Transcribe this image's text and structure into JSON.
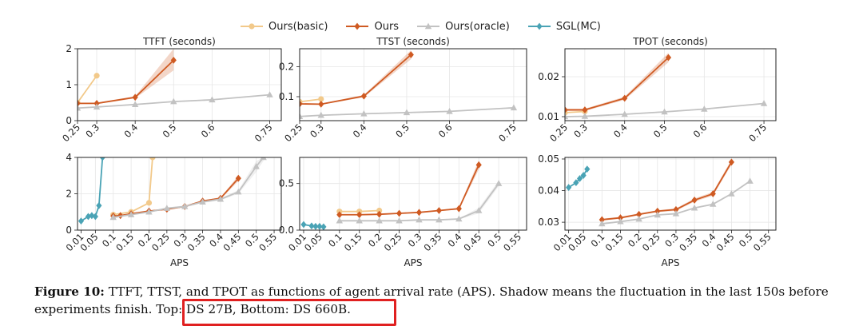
{
  "legend": [
    {
      "name": "Ours(basic)",
      "color": "#f2c98a",
      "marker": "circle"
    },
    {
      "name": "Ours",
      "color": "#cf5a22",
      "marker": "diamond"
    },
    {
      "name": "Ours(oracle)",
      "color": "#c2c2c2",
      "marker": "triangle"
    },
    {
      "name": "SGL(MC)",
      "color": "#4aa3b5",
      "marker": "diamond"
    }
  ],
  "caption": {
    "label": "Figure 10:",
    "text": " TTFT, TTST, and TPOT as functions of agent arrival rate (APS). Shadow means the fluctuation in the last 150s before experiments finish.",
    "highlight": "Top: DS 27B, Bottom: DS 660B."
  },
  "chart_data": [
    {
      "type": "line",
      "title": "TTFT (seconds)",
      "xlabel": "",
      "ylabel": "",
      "xlim": [
        0.25,
        0.78
      ],
      "ylim": [
        0,
        2
      ],
      "xticks": [
        "0.25",
        "0.3",
        "0.4",
        "0.5",
        "0.6",
        "0.75"
      ],
      "yticks": [
        "0",
        "1",
        "2"
      ],
      "series": [
        {
          "name": "Ours(basic)",
          "x": [
            0.25,
            0.3
          ],
          "y": [
            0.5,
            1.25
          ]
        },
        {
          "name": "Ours",
          "x": [
            0.25,
            0.3,
            0.4,
            0.5
          ],
          "y": [
            0.48,
            0.48,
            0.65,
            1.68
          ],
          "band_upper": [
            0.5,
            0.5,
            0.68,
            2.0
          ],
          "band_lower": [
            0.46,
            0.46,
            0.62,
            1.4
          ]
        },
        {
          "name": "Ours(oracle)",
          "x": [
            0.25,
            0.3,
            0.4,
            0.5,
            0.6,
            0.75
          ],
          "y": [
            0.35,
            0.38,
            0.45,
            0.53,
            0.58,
            0.72
          ]
        }
      ]
    },
    {
      "type": "line",
      "title": "TTST (seconds)",
      "xlabel": "",
      "ylabel": "",
      "xlim": [
        0.25,
        0.78
      ],
      "ylim": [
        0.02,
        0.26
      ],
      "xticks": [
        "0.25",
        "0.3",
        "0.4",
        "0.5",
        "0.6",
        "0.75"
      ],
      "yticks": [
        "0.1",
        "0.2"
      ],
      "series": [
        {
          "name": "Ours(basic)",
          "x": [
            0.25,
            0.3
          ],
          "y": [
            0.083,
            0.092
          ]
        },
        {
          "name": "Ours",
          "x": [
            0.25,
            0.3,
            0.4,
            0.51
          ],
          "y": [
            0.076,
            0.075,
            0.102,
            0.24
          ],
          "band_upper": [
            0.078,
            0.077,
            0.106,
            0.255
          ],
          "band_lower": [
            0.074,
            0.073,
            0.098,
            0.225
          ]
        },
        {
          "name": "Ours(oracle)",
          "x": [
            0.25,
            0.3,
            0.4,
            0.5,
            0.6,
            0.75
          ],
          "y": [
            0.034,
            0.038,
            0.043,
            0.047,
            0.051,
            0.063
          ]
        }
      ]
    },
    {
      "type": "line",
      "title": "TPOT (seconds)",
      "xlabel": "",
      "ylabel": "",
      "xlim": [
        0.25,
        0.78
      ],
      "ylim": [
        0.009,
        0.027
      ],
      "xticks": [
        "0.25",
        "0.3",
        "0.4",
        "0.5",
        "0.6",
        "0.75"
      ],
      "yticks": [
        "0.01",
        "0.02"
      ],
      "series": [
        {
          "name": "Ours(basic)",
          "x": [
            0.25,
            0.3
          ],
          "y": [
            0.011,
            0.0113
          ]
        },
        {
          "name": "Ours",
          "x": [
            0.25,
            0.3,
            0.4,
            0.51
          ],
          "y": [
            0.0117,
            0.0117,
            0.0146,
            0.0248
          ],
          "band_upper": [
            0.012,
            0.012,
            0.015,
            0.026
          ],
          "band_lower": [
            0.0114,
            0.0114,
            0.0142,
            0.0236
          ]
        },
        {
          "name": "Ours(oracle)",
          "x": [
            0.25,
            0.3,
            0.4,
            0.5,
            0.6,
            0.75
          ],
          "y": [
            0.01,
            0.0101,
            0.0106,
            0.0112,
            0.0119,
            0.0133
          ]
        }
      ]
    },
    {
      "type": "line",
      "title": "",
      "xlabel": "APS",
      "ylabel": "",
      "xlim": [
        0.0,
        0.57
      ],
      "ylim": [
        0,
        4
      ],
      "xticks": [
        "0.01",
        "0.05",
        "0.1",
        "0.15",
        "0.2",
        "0.25",
        "0.3",
        "0.35",
        "0.4",
        "0.45",
        "0.5",
        "0.55"
      ],
      "yticks": [
        "0",
        "2",
        "4"
      ],
      "series": [
        {
          "name": "SGL(MC)",
          "x": [
            0.01,
            0.03,
            0.04,
            0.05,
            0.06,
            0.07
          ],
          "y": [
            0.5,
            0.75,
            0.8,
            0.75,
            1.35,
            4.0
          ]
        },
        {
          "name": "Ours(basic)",
          "x": [
            0.1,
            0.15,
            0.2,
            0.21
          ],
          "y": [
            0.85,
            1.0,
            1.5,
            4.0
          ]
        },
        {
          "name": "Ours",
          "x": [
            0.1,
            0.12,
            0.15,
            0.2,
            0.25,
            0.3,
            0.35,
            0.4,
            0.45
          ],
          "y": [
            0.78,
            0.8,
            0.9,
            1.05,
            1.15,
            1.3,
            1.6,
            1.75,
            2.85
          ],
          "band_upper": [
            0.8,
            0.82,
            0.93,
            1.08,
            1.18,
            1.34,
            1.64,
            1.8,
            3.0
          ],
          "band_lower": [
            0.76,
            0.78,
            0.87,
            1.02,
            1.12,
            1.26,
            1.56,
            1.7,
            2.7
          ]
        },
        {
          "name": "Ours(oracle)",
          "x": [
            0.1,
            0.15,
            0.2,
            0.25,
            0.3,
            0.35,
            0.4,
            0.45,
            0.5,
            0.52
          ],
          "y": [
            0.7,
            0.85,
            1.0,
            1.2,
            1.3,
            1.55,
            1.7,
            2.1,
            3.5,
            4.0
          ],
          "band_upper": [
            0.72,
            0.88,
            1.04,
            1.25,
            1.35,
            1.6,
            1.76,
            2.2,
            3.8,
            4.0
          ],
          "band_lower": [
            0.68,
            0.82,
            0.96,
            1.15,
            1.25,
            1.5,
            1.64,
            2.0,
            3.2,
            3.8
          ]
        }
      ]
    },
    {
      "type": "line",
      "title": "",
      "xlabel": "APS",
      "ylabel": "",
      "xlim": [
        0.0,
        0.57
      ],
      "ylim": [
        0,
        0.78
      ],
      "xticks": [
        "0.01",
        "0.05",
        "0.1",
        "0.15",
        "0.2",
        "0.25",
        "0.3",
        "0.35",
        "0.4",
        "0.45",
        "0.5",
        "0.55"
      ],
      "yticks": [
        "0.0",
        "0.5"
      ],
      "series": [
        {
          "name": "SGL(MC)",
          "x": [
            0.01,
            0.03,
            0.04,
            0.05,
            0.06
          ],
          "y": [
            0.06,
            0.045,
            0.04,
            0.04,
            0.035
          ]
        },
        {
          "name": "Ours(basic)",
          "x": [
            0.1,
            0.15,
            0.2
          ],
          "y": [
            0.2,
            0.2,
            0.21
          ]
        },
        {
          "name": "Ours",
          "x": [
            0.1,
            0.15,
            0.2,
            0.25,
            0.3,
            0.35,
            0.4,
            0.45
          ],
          "y": [
            0.165,
            0.165,
            0.17,
            0.18,
            0.19,
            0.21,
            0.23,
            0.7
          ],
          "band_upper": [
            0.17,
            0.17,
            0.175,
            0.185,
            0.195,
            0.215,
            0.24,
            0.75
          ],
          "band_lower": [
            0.16,
            0.16,
            0.165,
            0.175,
            0.185,
            0.205,
            0.22,
            0.65
          ]
        },
        {
          "name": "Ours(oracle)",
          "x": [
            0.1,
            0.15,
            0.2,
            0.25,
            0.3,
            0.35,
            0.4,
            0.45,
            0.5
          ],
          "y": [
            0.1,
            0.1,
            0.1,
            0.1,
            0.11,
            0.11,
            0.12,
            0.21,
            0.5
          ],
          "band_upper": [
            0.105,
            0.105,
            0.105,
            0.105,
            0.115,
            0.115,
            0.125,
            0.24,
            0.53
          ],
          "band_lower": [
            0.095,
            0.095,
            0.095,
            0.095,
            0.105,
            0.105,
            0.115,
            0.18,
            0.47
          ]
        }
      ]
    },
    {
      "type": "line",
      "title": "",
      "xlabel": "APS",
      "ylabel": "",
      "xlim": [
        0.0,
        0.57
      ],
      "ylim": [
        0.0275,
        0.0505
      ],
      "xticks": [
        "0.01",
        "0.05",
        "0.1",
        "0.15",
        "0.2",
        "0.25",
        "0.3",
        "0.35",
        "0.4",
        "0.45",
        "0.5",
        "0.55"
      ],
      "yticks": [
        "0.03",
        "0.04",
        "0.05"
      ],
      "series": [
        {
          "name": "SGL(MC)",
          "x": [
            0.01,
            0.03,
            0.04,
            0.05,
            0.06
          ],
          "y": [
            0.041,
            0.0425,
            0.0438,
            0.0448,
            0.0468
          ]
        },
        {
          "name": "Ours",
          "x": [
            0.1,
            0.15,
            0.2,
            0.25,
            0.3,
            0.35,
            0.4,
            0.45
          ],
          "y": [
            0.0308,
            0.0314,
            0.0325,
            0.0335,
            0.034,
            0.037,
            0.039,
            0.049
          ],
          "band_upper": [
            0.0311,
            0.0317,
            0.0328,
            0.0338,
            0.0344,
            0.0375,
            0.0396,
            0.0498
          ],
          "band_lower": [
            0.0305,
            0.0311,
            0.0322,
            0.0332,
            0.0336,
            0.0365,
            0.0384,
            0.0482
          ]
        },
        {
          "name": "Ours(oracle)",
          "x": [
            0.1,
            0.15,
            0.2,
            0.25,
            0.3,
            0.35,
            0.4,
            0.45,
            0.5
          ],
          "y": [
            0.0295,
            0.0302,
            0.031,
            0.0323,
            0.0327,
            0.0345,
            0.0357,
            0.039,
            0.043
          ]
        }
      ]
    }
  ]
}
